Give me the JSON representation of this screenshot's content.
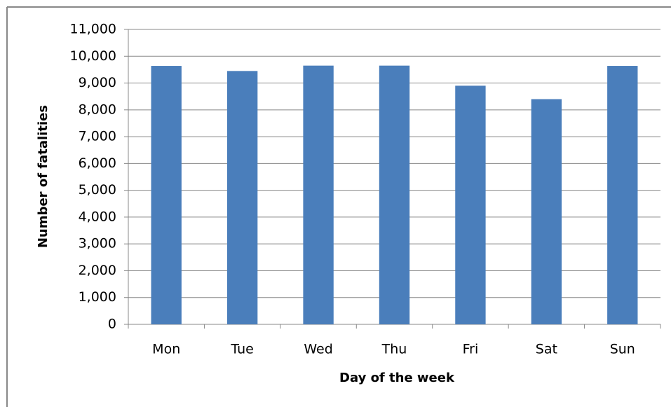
{
  "chart_data": {
    "type": "bar",
    "x_label": "Day of the week",
    "y_label": "Number of fatalities",
    "categories": [
      "Mon",
      "Tue",
      "Wed",
      "Thu",
      "Fri",
      "Sat",
      "Sun"
    ],
    "values": [
      9640,
      9450,
      9650,
      9650,
      8900,
      8400,
      9640
    ],
    "color": "#4a7ebb",
    "ylim": [
      0,
      11000
    ],
    "yticks": [
      0,
      {
        "value": 1000,
        "label": "1,000"
      },
      {
        "value": 2000,
        "label": "2,000"
      },
      {
        "value": 3000,
        "label": "3,000"
      },
      {
        "value": 4000,
        "label": "4,000"
      },
      {
        "value": 5000,
        "label": "5,000"
      },
      {
        "value": 6000,
        "label": "6,000"
      },
      {
        "value": 7000,
        "label": "7,000"
      },
      {
        "value": 8000,
        "label": "8,000"
      },
      {
        "value": 9000,
        "label": "9,000"
      },
      {
        "value": 10000,
        "label": "10,000"
      },
      {
        "value": 11000,
        "label": "11,000"
      }
    ],
    "grid": true
  }
}
